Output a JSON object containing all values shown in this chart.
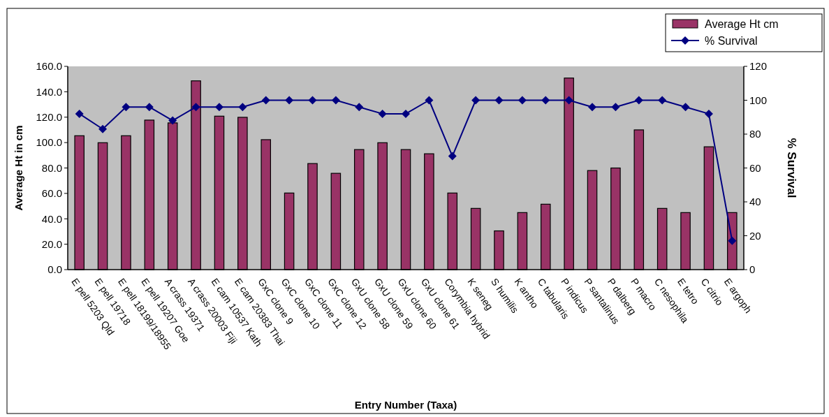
{
  "chart_data": {
    "type": "bar",
    "xlabel": "Entry Number (Taxa)",
    "ylabel": "Average Ht in cm",
    "y2label": "% Survival",
    "categories": [
      "E pell 5203 Qld",
      "E pell 19718",
      "E pell 18199/18955",
      "E pell 19207 Goe",
      "A crass 19371",
      "A crass 20003 Fiji",
      "E cam 10537 Kath",
      "E cam 20383 Thai",
      "GxC clone 9",
      "GxC clone 10",
      "GxC clone 11",
      "GxC clone 12",
      "GxU clone 58",
      "GxU clone 59",
      "GxU clone 60",
      "GxU clone 61",
      "Corymbia hybrid",
      "K seneg",
      "S humilis",
      "K antho",
      "C tabularis",
      "P indicus",
      "P santalinus",
      "P dalberg",
      "P macro",
      "C nesophila",
      "E tetro",
      "C citrio",
      "E argoph"
    ],
    "series": [
      {
        "name": "Average Ht cm",
        "color": "#993366",
        "values": [
          105.4,
          99.9,
          105.4,
          117.7,
          115.5,
          148.6,
          120.8,
          119.9,
          102.3,
          60.3,
          83.5,
          75.8,
          94.5,
          99.9,
          94.5,
          91.2,
          60.3,
          48.2,
          30.5,
          44.9,
          51.5,
          150.8,
          78.0,
          80.0,
          110.0,
          48.2,
          44.9,
          96.7,
          44.9
        ]
      },
      {
        "name": "% Survival",
        "type": "line",
        "axis": "y2",
        "color": "#000080",
        "marker": "diamond",
        "values": [
          92,
          83,
          96,
          96,
          88,
          96,
          96,
          96,
          100,
          100,
          100,
          100,
          96,
          92,
          92,
          100,
          67,
          100,
          100,
          100,
          100,
          100,
          96,
          96,
          100,
          100,
          96,
          92,
          17
        ]
      }
    ],
    "ylim": [
      0,
      160
    ],
    "yticks": [
      {
        "value": 0,
        "label": "0.0"
      },
      {
        "value": 20,
        "label": "20.0"
      },
      {
        "value": 40,
        "label": "40.0"
      },
      {
        "value": 60,
        "label": "60.0"
      },
      {
        "value": 80,
        "label": "80.0"
      },
      {
        "value": 100,
        "label": "100.0"
      },
      {
        "value": 120,
        "label": "120.0"
      },
      {
        "value": 140,
        "label": "140.0"
      },
      {
        "value": 160,
        "label": "160.0"
      }
    ],
    "y2lim": [
      0,
      120
    ],
    "y2ticks": [
      0,
      20,
      40,
      60,
      80,
      100,
      120
    ],
    "grid": false,
    "legend": "top right"
  }
}
